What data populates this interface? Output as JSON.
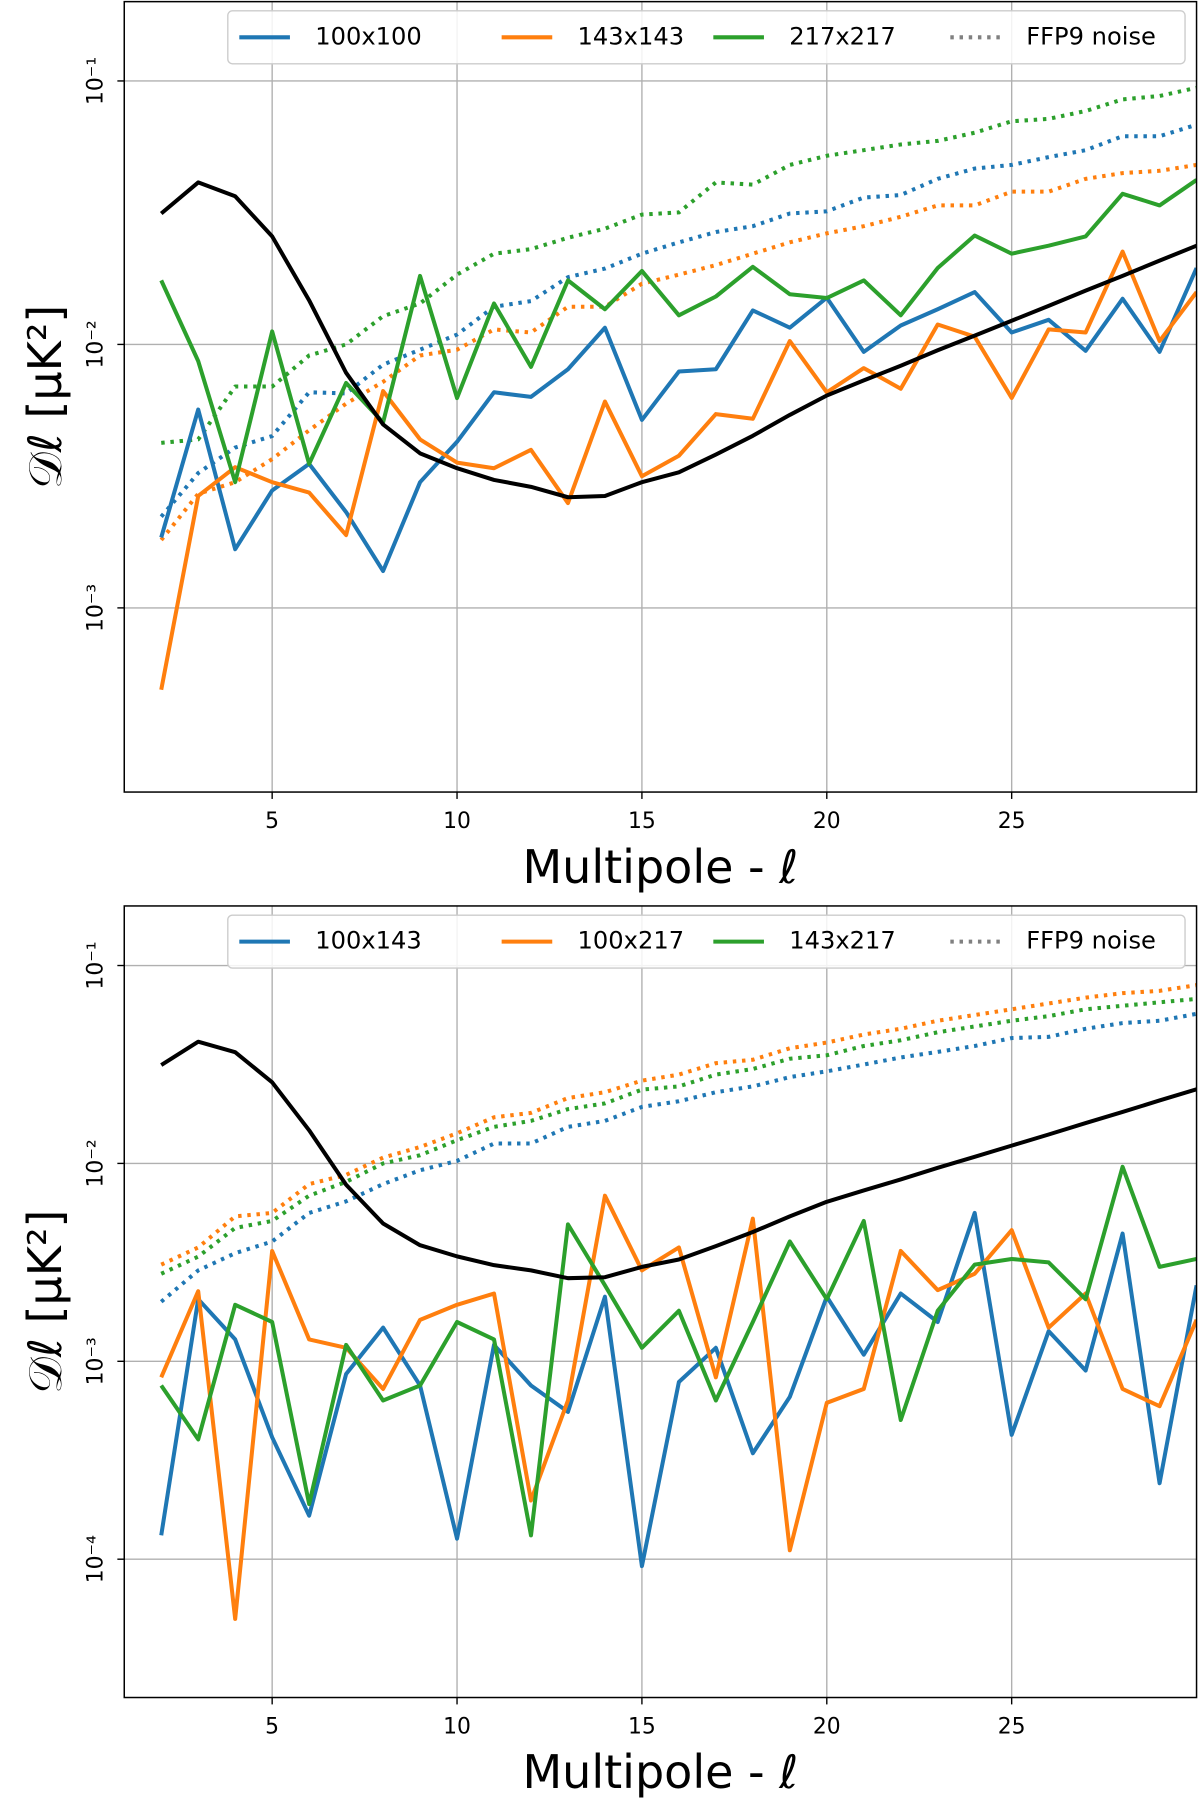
{
  "chart_data": [
    {
      "type": "line",
      "log_y": true,
      "grid": true,
      "legend": "upper right",
      "xlabel": "Multipole - ℓ",
      "ylabel": "𝒟ℓ [μK²]",
      "x": [
        2,
        3,
        4,
        5,
        6,
        7,
        8,
        9,
        10,
        11,
        12,
        13,
        14,
        15,
        16,
        17,
        18,
        19,
        20,
        21,
        22,
        23,
        24,
        25,
        26,
        27,
        28,
        29,
        30
      ],
      "xlim": [
        1,
        30
      ],
      "xticks": [
        5,
        10,
        15,
        20,
        25
      ],
      "ylim": [
        0.0002,
        0.2
      ],
      "yticks": [
        {
          "value": 0.001,
          "label": "10⁻³"
        },
        {
          "value": 0.01,
          "label": "10⁻²"
        },
        {
          "value": 0.1,
          "label": "10⁻¹"
        }
      ],
      "noise_name": "FFP9 noise",
      "noise_color": "#808080",
      "series": [
        {
          "name": "100x100",
          "color": "#1f77b4",
          "values": [
            0.00185,
            0.00566,
            0.00167,
            0.00279,
            0.00352,
            0.00231,
            0.00138,
            0.003,
            0.00427,
            0.00658,
            0.00632,
            0.00805,
            0.01157,
            0.00517,
            0.00789,
            0.00805,
            0.01346,
            0.01157,
            0.01504,
            0.00937,
            0.0118,
            0.0136,
            0.0158,
            0.0111,
            0.0124,
            0.00946,
            0.0149,
            0.00937,
            0.0195
          ],
          "noise_values": [
            0.00222,
            0.00325,
            0.00406,
            0.00449,
            0.00658,
            0.00652,
            0.00838,
            0.00955,
            0.0109,
            0.0139,
            0.0146,
            0.018,
            0.0194,
            0.0221,
            0.0244,
            0.0267,
            0.0281,
            0.0314,
            0.032,
            0.0361,
            0.0369,
            0.0425,
            0.0465,
            0.048,
            0.0514,
            0.0546,
            0.0617,
            0.0617,
            0.0682
          ]
        },
        {
          "name": "143x143",
          "color": "#ff7f0e",
          "values": [
            0.000489,
            0.00266,
            0.00342,
            0.003,
            0.00274,
            0.00189,
            0.00665,
            0.00436,
            0.00356,
            0.00339,
            0.00398,
            0.0025,
            0.00607,
            0.00316,
            0.00378,
            0.00544,
            0.00522,
            0.0103,
            0.00658,
            0.00813,
            0.00679,
            0.0119,
            0.0107,
            0.00626,
            0.0114,
            0.0111,
            0.0225,
            0.0103,
            0.0158
          ],
          "noise_values": [
            0.00181,
            0.00271,
            0.003,
            0.00367,
            0.00472,
            0.00596,
            0.00721,
            0.00908,
            0.00955,
            0.0114,
            0.0111,
            0.0139,
            0.0139,
            0.017,
            0.0184,
            0.02,
            0.0221,
            0.0244,
            0.0264,
            0.0281,
            0.0305,
            0.0337,
            0.0337,
            0.038,
            0.038,
            0.0425,
            0.0447,
            0.0456,
            0.048
          ]
        },
        {
          "name": "217x217",
          "color": "#2ca02c",
          "values": [
            0.0175,
            0.00864,
            0.003,
            0.0112,
            0.00352,
            0.00714,
            0.00506,
            0.0182,
            0.00626,
            0.0143,
            0.00822,
            0.0175,
            0.0136,
            0.019,
            0.0129,
            0.0152,
            0.0197,
            0.0155,
            0.015,
            0.0175,
            0.0129,
            0.0195,
            0.0259,
            0.0221,
            0.0237,
            0.0257,
            0.0373,
            0.0337,
            0.0421
          ],
          "noise_values": [
            0.00423,
            0.00436,
            0.00692,
            0.00692,
            0.00908,
            0.01,
            0.0128,
            0.0143,
            0.0184,
            0.0221,
            0.023,
            0.0254,
            0.0275,
            0.0311,
            0.0317,
            0.0412,
            0.0404,
            0.048,
            0.052,
            0.0546,
            0.0574,
            0.0592,
            0.0636,
            0.0703,
            0.0718,
            0.0769,
            0.0851,
            0.0877,
            0.0942
          ]
        }
      ],
      "reference": {
        "color": "#000000",
        "values": [
          0.0314,
          0.0412,
          0.0365,
          0.0257,
          0.0147,
          0.0078,
          0.00497,
          0.00386,
          0.00339,
          0.00306,
          0.00288,
          0.00263,
          0.00266,
          0.003,
          0.00327,
          0.00382,
          0.0045,
          0.0054,
          0.0064,
          0.0073,
          0.0083,
          0.0095,
          0.0108,
          0.0123,
          0.014,
          0.016,
          0.0182,
          0.0208,
          0.0237
        ]
      }
    },
    {
      "type": "line",
      "log_y": true,
      "grid": true,
      "legend": "upper right",
      "xlabel": "Multipole - ℓ",
      "ylabel": "𝒟ℓ [μK²]",
      "x": [
        2,
        3,
        4,
        5,
        6,
        7,
        8,
        9,
        10,
        11,
        12,
        13,
        14,
        15,
        16,
        17,
        18,
        19,
        20,
        21,
        22,
        23,
        24,
        25,
        26,
        27,
        28,
        29,
        30
      ],
      "xlim": [
        1,
        30
      ],
      "xticks": [
        5,
        10,
        15,
        20,
        25
      ],
      "ylim": [
        2e-05,
        0.2
      ],
      "yticks": [
        {
          "value": 0.0001,
          "label": "10⁻⁴"
        },
        {
          "value": 0.001,
          "label": "10⁻³"
        },
        {
          "value": 0.01,
          "label": "10⁻²"
        },
        {
          "value": 0.1,
          "label": "10⁻¹"
        }
      ],
      "noise_name": "FFP9 noise",
      "noise_color": "#808080",
      "series": [
        {
          "name": "100x143",
          "color": "#1f77b4",
          "values": [
            0.000132,
            0.00206,
            0.00129,
            0.000413,
            0.000166,
            0.000863,
            0.00148,
            0.000755,
            0.000127,
            0.00121,
            0.000755,
            0.000555,
            0.00212,
            9.23e-05,
            0.000786,
            0.00117,
            0.000343,
            0.000661,
            0.00212,
            0.00108,
            0.0022,
            0.00158,
            0.00562,
            0.000425,
            0.00142,
            0.000898,
            0.00442,
            0.000242,
            0.00242
          ],
          "noise_values": [
            0.002,
            0.00288,
            0.00352,
            0.00403,
            0.00562,
            0.00643,
            0.00786,
            0.00923,
            0.0103,
            0.0126,
            0.0126,
            0.0153,
            0.0164,
            0.0193,
            0.0206,
            0.0229,
            0.0245,
            0.0273,
            0.0292,
            0.0316,
            0.0343,
            0.0366,
            0.0392,
            0.043,
            0.0436,
            0.0479,
            0.0512,
            0.0526,
            0.057
          ]
        },
        {
          "name": "100x217",
          "color": "#ff7f0e",
          "values": [
            0.00083,
            0.00226,
            4.99e-05,
            0.00361,
            0.00129,
            0.00117,
            0.000725,
            0.00162,
            0.00193,
            0.0022,
            0.000198,
            0.000634,
            0.00687,
            0.00288,
            0.00376,
            0.00083,
            0.00526,
            0.000111,
            0.000617,
            0.000725,
            0.00361,
            0.00229,
            0.00277,
            0.0046,
            0.00148,
            0.0022,
            0.000725,
            0.000593,
            0.00162
          ],
          "noise_values": [
            0.00308,
            0.00376,
            0.0054,
            0.00562,
            0.00786,
            0.00875,
            0.0107,
            0.0121,
            0.0142,
            0.0171,
            0.018,
            0.0214,
            0.0229,
            0.0262,
            0.0281,
            0.0321,
            0.0334,
            0.0382,
            0.0408,
            0.0448,
            0.0479,
            0.0526,
            0.0562,
            0.0601,
            0.0643,
            0.0688,
            0.0725,
            0.0745,
            0.0796
          ]
        },
        {
          "name": "143x217",
          "color": "#2ca02c",
          "values": [
            0.000755,
            0.000403,
            0.00193,
            0.00158,
            0.00019,
            0.00121,
            0.000634,
            0.000755,
            0.00158,
            0.00129,
            0.000132,
            0.00492,
            0.00242,
            0.00117,
            0.0018,
            0.000634,
            0.00158,
            0.00403,
            0.00206,
            0.00512,
            0.000505,
            0.0018,
            0.00308,
            0.00329,
            0.00316,
            0.00206,
            0.00961,
            0.003,
            0.00329
          ],
          "noise_values": [
            0.00277,
            0.00338,
            0.00472,
            0.00512,
            0.00687,
            0.00807,
            0.01,
            0.011,
            0.0131,
            0.0153,
            0.0164,
            0.0188,
            0.0201,
            0.0236,
            0.0245,
            0.0281,
            0.03,
            0.0338,
            0.0352,
            0.0392,
            0.0419,
            0.046,
            0.0492,
            0.0526,
            0.0555,
            0.0601,
            0.0626,
            0.0652,
            0.0678
          ]
        }
      ],
      "reference": {
        "color": "#000000",
        "values": [
          0.0314,
          0.0412,
          0.0365,
          0.0257,
          0.0147,
          0.0078,
          0.00497,
          0.00386,
          0.00339,
          0.00306,
          0.00288,
          0.00263,
          0.00266,
          0.003,
          0.00327,
          0.00382,
          0.0045,
          0.0054,
          0.0064,
          0.0073,
          0.0083,
          0.0095,
          0.0108,
          0.0123,
          0.014,
          0.016,
          0.0182,
          0.0208,
          0.0237
        ]
      }
    }
  ]
}
